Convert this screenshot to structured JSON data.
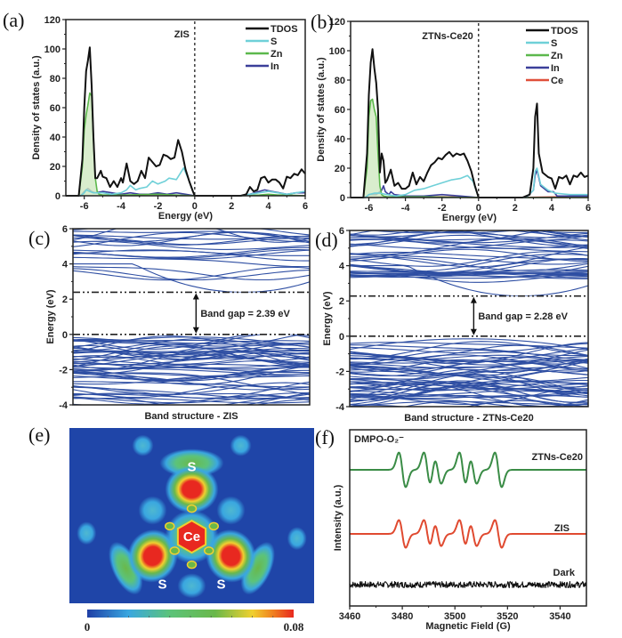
{
  "chart_data": [
    {
      "id": "a",
      "panel_label": "(a)",
      "type": "line",
      "annotation": "ZIS",
      "xlabel": "Energy (eV)",
      "ylabel": "Density of states (a.u.)",
      "xlim": [
        -7,
        6
      ],
      "ylim": [
        0,
        120
      ],
      "xticks": [
        -6,
        -4,
        -2,
        0,
        2,
        4,
        6
      ],
      "yticks": [
        0,
        20,
        40,
        60,
        80,
        100,
        120
      ],
      "fermi_line_x": 0,
      "legend": {
        "position": "top-right",
        "entries": [
          "TDOS",
          "S",
          "Zn",
          "In"
        ]
      },
      "series": [
        {
          "name": "TDOS",
          "color": "#111111",
          "x": [
            -7,
            -6.3,
            -6.1,
            -6.0,
            -5.9,
            -5.8,
            -5.7,
            -5.6,
            -5.5,
            -5.4,
            -5.3,
            -5.1,
            -5.0,
            -4.8,
            -4.6,
            -4.4,
            -4.2,
            -4.0,
            -3.9,
            -3.7,
            -3.5,
            -3.3,
            -3.1,
            -2.9,
            -2.7,
            -2.5,
            -2.3,
            -2.1,
            -1.9,
            -1.7,
            -1.5,
            -1.3,
            -1.1,
            -0.9,
            -0.7,
            -0.5,
            -0.3,
            -0.1,
            0,
            2.5,
            2.8,
            3.0,
            3.2,
            3.4,
            3.6,
            3.8,
            4.0,
            4.2,
            4.4,
            4.6,
            4.8,
            5.0,
            5.2,
            5.4,
            5.6,
            5.8,
            6.0
          ],
          "y": [
            0,
            0,
            25,
            60,
            85,
            92,
            101,
            75,
            40,
            12,
            12,
            17,
            13,
            12,
            6,
            10,
            6,
            12,
            9,
            22,
            10,
            8,
            10,
            17,
            12,
            26,
            23,
            20,
            21,
            28,
            27,
            25,
            26,
            38,
            30,
            18,
            10,
            3,
            0,
            0,
            1,
            6,
            3,
            4,
            12,
            13,
            9,
            11,
            11,
            9,
            5,
            13,
            12,
            15,
            14,
            18,
            15
          ]
        },
        {
          "name": "S",
          "color": "#6fd0d8",
          "x": [
            -7,
            -6.2,
            -6.0,
            -5.9,
            -5.7,
            -5.5,
            -5.0,
            -4.5,
            -4.0,
            -3.7,
            -3.5,
            -3.2,
            -3.0,
            -2.6,
            -2.3,
            -2.0,
            -1.6,
            -1.4,
            -1.0,
            -0.8,
            -0.6,
            -0.3,
            0,
            2.5,
            3.0,
            3.5,
            4.0,
            4.5,
            5.0,
            5.5,
            6.0
          ],
          "y": [
            0,
            0,
            2,
            4,
            3,
            2,
            2,
            1,
            2,
            4,
            7,
            4,
            5,
            6,
            10,
            8,
            10,
            12,
            11,
            15,
            19,
            10,
            0,
            0,
            1,
            2,
            3,
            2,
            1,
            2,
            3
          ]
        },
        {
          "name": "Zn",
          "color": "#5cb84c",
          "x": [
            -7,
            -6.3,
            -6.1,
            -6.0,
            -5.9,
            -5.8,
            -5.7,
            -5.6,
            -5.5,
            -5.4,
            -5.3,
            -5.2,
            -5.0,
            -4.0,
            -2.0,
            0,
            2.5,
            3.5,
            4.0,
            4.5,
            5.0,
            6.0
          ],
          "y": [
            0,
            0,
            20,
            45,
            55,
            62,
            70,
            68,
            40,
            12,
            3,
            1,
            0.5,
            0.5,
            1,
            0,
            0,
            0.5,
            1,
            0.5,
            0.5,
            0
          ]
        },
        {
          "name": "In",
          "color": "#3b3f9a",
          "x": [
            -7,
            -6.2,
            -6.0,
            -5.8,
            -5.6,
            -5.4,
            -5.0,
            -4.5,
            -4.0,
            -3.5,
            -3.0,
            -2.5,
            -2.0,
            -1.5,
            -1.0,
            -0.5,
            0,
            2.5,
            3.0,
            3.5,
            3.8,
            4.2,
            4.6,
            5.0,
            5.5,
            6.0
          ],
          "y": [
            0,
            0,
            3,
            5,
            3,
            2,
            3,
            2,
            1,
            2,
            1,
            1,
            2,
            1,
            2,
            1,
            0,
            0,
            1,
            3,
            4,
            3,
            2,
            1,
            2,
            2
          ]
        }
      ]
    },
    {
      "id": "b",
      "panel_label": "(b)",
      "type": "line",
      "annotation": "ZTNs-Ce20",
      "xlabel": "Energy (eV)",
      "ylabel": "Density of states (a.u.)",
      "xlim": [
        -7,
        6
      ],
      "ylim": [
        0,
        120
      ],
      "xticks": [
        -6,
        -4,
        -2,
        0,
        2,
        4,
        6
      ],
      "yticks": [
        0,
        20,
        40,
        60,
        80,
        100,
        120
      ],
      "fermi_line_x": 0,
      "legend": {
        "position": "top-right",
        "entries": [
          "TDOS",
          "S",
          "Zn",
          "In",
          "Ce"
        ]
      },
      "series": [
        {
          "name": "TDOS",
          "color": "#111111",
          "x": [
            -7,
            -6.3,
            -6.1,
            -6.0,
            -5.9,
            -5.8,
            -5.7,
            -5.6,
            -5.5,
            -5.4,
            -5.3,
            -5.2,
            -5.1,
            -5.0,
            -4.8,
            -4.6,
            -4.4,
            -4.2,
            -4.0,
            -3.8,
            -3.6,
            -3.4,
            -3.2,
            -3.0,
            -2.8,
            -2.6,
            -2.4,
            -2.2,
            -2.0,
            -1.8,
            -1.6,
            -1.4,
            -1.2,
            -1.0,
            -0.8,
            -0.6,
            -0.4,
            -0.2,
            0,
            2.4,
            2.8,
            3.0,
            3.1,
            3.2,
            3.3,
            3.5,
            3.8,
            4.0,
            4.2,
            4.4,
            4.6,
            4.8,
            5.0,
            5.2,
            5.4,
            5.6,
            5.8,
            6.0
          ],
          "y": [
            0,
            0,
            30,
            70,
            92,
            101,
            88,
            78,
            60,
            17,
            30,
            25,
            10,
            12,
            19,
            8,
            10,
            6,
            6,
            8,
            17,
            9,
            14,
            11,
            17,
            22,
            24,
            27,
            26,
            29,
            31,
            28,
            30,
            29,
            30,
            25,
            18,
            8,
            0,
            0,
            2,
            20,
            55,
            64,
            30,
            17,
            14,
            13,
            6,
            14,
            13,
            15,
            9,
            15,
            14,
            17,
            14,
            15
          ]
        },
        {
          "name": "S",
          "color": "#6fd0d8",
          "x": [
            -7,
            -6.2,
            -6.0,
            -5.7,
            -5.4,
            -5.0,
            -4.5,
            -4.0,
            -3.5,
            -3.0,
            -2.5,
            -2.0,
            -1.5,
            -1.0,
            -0.6,
            -0.3,
            0,
            2.6,
            3.0,
            3.1,
            3.2,
            3.4,
            3.8,
            4.2,
            5.0,
            6.0
          ],
          "y": [
            0,
            0,
            2,
            3,
            3,
            2,
            1,
            2,
            5,
            6,
            8,
            10,
            12,
            13,
            15,
            11,
            0,
            0,
            5,
            18,
            20,
            9,
            5,
            3,
            2,
            2
          ]
        },
        {
          "name": "Zn",
          "color": "#5cb84c",
          "x": [
            -7,
            -6.3,
            -6.1,
            -6.0,
            -5.9,
            -5.8,
            -5.7,
            -5.6,
            -5.5,
            -5.4,
            -5.3,
            -5.2,
            -5.0,
            -3.0,
            0,
            6.0
          ],
          "y": [
            0,
            0,
            20,
            55,
            66,
            67,
            60,
            55,
            30,
            8,
            2,
            1,
            0.5,
            0.5,
            0,
            0
          ]
        },
        {
          "name": "In",
          "color": "#3b3f9a",
          "x": [
            -7,
            -6.2,
            -6.0,
            -5.6,
            -5.3,
            -5.2,
            -5.1,
            -4.9,
            -4.8,
            -4.6,
            -4.0,
            -3.0,
            -2.0,
            -1.0,
            0,
            2.6,
            3.0,
            3.1,
            3.2,
            3.4,
            3.8,
            4.1,
            4.3,
            5.0,
            6.0
          ],
          "y": [
            0,
            0,
            2,
            2,
            5,
            8,
            4,
            2,
            4,
            2,
            1,
            1,
            2,
            1,
            0,
            0,
            5,
            15,
            19,
            8,
            4,
            4,
            1,
            1,
            1
          ]
        },
        {
          "name": "Ce",
          "color": "#e0503a",
          "x": [
            -7,
            -4,
            -2,
            0,
            2,
            4.5,
            5,
            5.5,
            6
          ],
          "y": [
            0,
            0.5,
            0.5,
            0,
            0,
            0.5,
            1,
            1,
            1
          ]
        }
      ]
    },
    {
      "id": "c",
      "panel_label": "(c)",
      "type": "line",
      "title": "Band structure - ZIS",
      "ylabel": "Energy (eV)",
      "ylim": [
        -4,
        6
      ],
      "yticks": [
        -4,
        -2,
        0,
        2,
        4,
        6
      ],
      "band_color": "#2f4fa3",
      "cbm": 2.39,
      "vbm": 0,
      "annotation": "Band gap = 2.39 eV"
    },
    {
      "id": "d",
      "panel_label": "(d)",
      "type": "line",
      "title": "Band structure - ZTNs-Ce20",
      "ylabel": "Energy (eV)",
      "ylim": [
        -4,
        6
      ],
      "yticks": [
        -4,
        -2,
        0,
        2,
        4,
        6
      ],
      "band_color": "#2f4fa3",
      "cbm": 2.28,
      "vbm": 0,
      "annotation": "Band gap = 2.28 eV"
    },
    {
      "id": "e",
      "panel_label": "(e)",
      "type": "heatmap",
      "atoms": [
        {
          "label": "Ce",
          "x": 0.5,
          "y": 0.62
        },
        {
          "label": "S",
          "x": 0.5,
          "y": 0.22
        },
        {
          "label": "S",
          "x": 0.38,
          "y": 0.89
        },
        {
          "label": "S",
          "x": 0.62,
          "y": 0.89
        }
      ],
      "colorbar": {
        "min_label": "0",
        "max_label": "0.08",
        "min": 0,
        "max": 0.08,
        "colors": [
          "#1f3fa6",
          "#3aa7e0",
          "#5cc37a",
          "#6ab84a",
          "#f0d030",
          "#f08020",
          "#e82820"
        ]
      }
    },
    {
      "id": "f",
      "panel_label": "(f)",
      "type": "line",
      "annotation": "DMPO-O₂⁻",
      "xlabel": "Magnetic Field (G)",
      "ylabel": "Intensity (a.u.)",
      "xlim": [
        3460,
        3550
      ],
      "xticks": [
        3460,
        3480,
        3500,
        3520,
        3540
      ],
      "series": [
        {
          "name": "ZTNs-Ce20",
          "color": "#3a8c46",
          "offset": 2.0,
          "peaks": [
            3480,
            3489.5,
            3493.5,
            3503,
            3507,
            3516.5
          ],
          "amps": [
            1.0,
            1.0,
            0.8,
            1.0,
            0.8,
            1.0
          ]
        },
        {
          "name": "ZIS",
          "color": "#e04a30",
          "offset": 1.0,
          "peaks": [
            3480,
            3489.5,
            3493.5,
            3503,
            3507,
            3516.5
          ],
          "amps": [
            0.8,
            0.8,
            0.7,
            0.8,
            0.7,
            0.8
          ]
        },
        {
          "name": "Dark",
          "color": "#111111",
          "offset": 0.0,
          "noise": true
        }
      ]
    }
  ]
}
